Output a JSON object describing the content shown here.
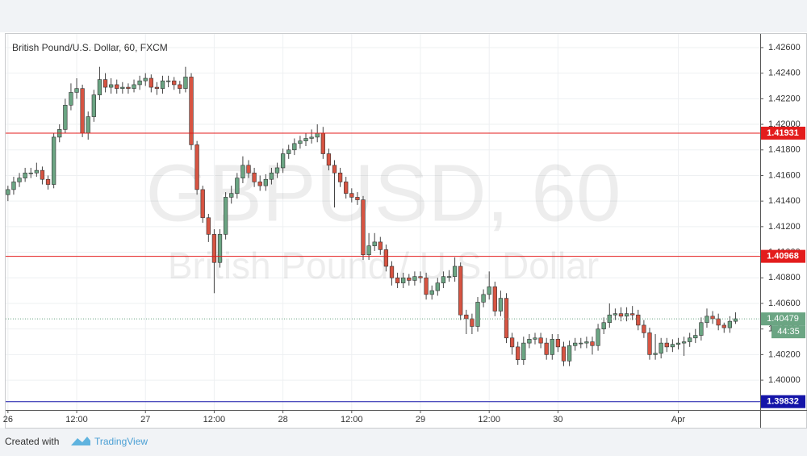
{
  "chart_data": {
    "type": "candlestick",
    "title": "British Pound/U.S. Dollar, 60, FXCM",
    "watermark": "GBPUSD, 60",
    "watermark_subtitle": "British Pound / U.S. Dollar",
    "up_color": "#6ba583",
    "down_color": "#d75442",
    "grid": true,
    "xlim": [
      -0.4,
      131.3
    ],
    "xticks": [
      {
        "value": 0,
        "label": "26"
      },
      {
        "value": 12,
        "label": "12:00"
      },
      {
        "value": 24,
        "label": "27"
      },
      {
        "value": 36,
        "label": "12:00"
      },
      {
        "value": 48,
        "label": "28"
      },
      {
        "value": 60,
        "label": "12:00"
      },
      {
        "value": 72,
        "label": "29"
      },
      {
        "value": 84,
        "label": "12:00"
      },
      {
        "value": 96,
        "label": "30"
      },
      {
        "value": 117,
        "label": "Apr"
      }
    ],
    "ylim": [
      1.39767,
      1.42707
    ],
    "yticks": [
      {
        "value": 1.4,
        "label": "1.40000"
      },
      {
        "value": 1.402,
        "label": "1.40200"
      },
      {
        "value": 1.404,
        "label": "1.40400"
      },
      {
        "value": 1.406,
        "label": "1.40600"
      },
      {
        "value": 1.408,
        "label": "1.40800"
      },
      {
        "value": 1.41,
        "label": "1.41000"
      },
      {
        "value": 1.412,
        "label": "1.41200"
      },
      {
        "value": 1.414,
        "label": "1.41400"
      },
      {
        "value": 1.416,
        "label": "1.41600"
      },
      {
        "value": 1.418,
        "label": "1.41800"
      },
      {
        "value": 1.42,
        "label": "1.42000"
      },
      {
        "value": 1.422,
        "label": "1.42200"
      },
      {
        "value": 1.424,
        "label": "1.42400"
      },
      {
        "value": 1.426,
        "label": "1.42600"
      }
    ],
    "levels": [
      {
        "value": 1.41931,
        "color": "#e31c1c"
      },
      {
        "value": 1.40968,
        "color": "#e31c1c"
      },
      {
        "value": 1.39832,
        "color": "#1414a8"
      }
    ],
    "last_price": 1.40479,
    "countdown": "44:35",
    "candles": [
      [
        1.4145,
        1.4152,
        1.414,
        1.4149
      ],
      [
        1.4149,
        1.4159,
        1.4145,
        1.4155
      ],
      [
        1.4155,
        1.4162,
        1.4151,
        1.4158
      ],
      [
        1.4158,
        1.4166,
        1.4155,
        1.4162
      ],
      [
        1.4162,
        1.4166,
        1.4158,
        1.4162
      ],
      [
        1.4162,
        1.417,
        1.4159,
        1.4164
      ],
      [
        1.4164,
        1.4167,
        1.4153,
        1.4157
      ],
      [
        1.4157,
        1.416,
        1.4149,
        1.4153
      ],
      [
        1.4153,
        1.4193,
        1.415,
        1.419
      ],
      [
        1.419,
        1.42,
        1.4186,
        1.4196
      ],
      [
        1.4196,
        1.422,
        1.4193,
        1.4215
      ],
      [
        1.4215,
        1.4232,
        1.4211,
        1.4225
      ],
      [
        1.4225,
        1.4236,
        1.422,
        1.4228
      ],
      [
        1.4228,
        1.4231,
        1.419,
        1.4193
      ],
      [
        1.4193,
        1.421,
        1.4188,
        1.4206
      ],
      [
        1.4206,
        1.4227,
        1.4202,
        1.4223
      ],
      [
        1.4223,
        1.4245,
        1.4219,
        1.4235
      ],
      [
        1.4235,
        1.424,
        1.4225,
        1.4229
      ],
      [
        1.4229,
        1.4236,
        1.4224,
        1.4231
      ],
      [
        1.4231,
        1.4235,
        1.4224,
        1.4228
      ],
      [
        1.4228,
        1.4233,
        1.4224,
        1.4229
      ],
      [
        1.4229,
        1.4232,
        1.4224,
        1.4228
      ],
      [
        1.4228,
        1.4235,
        1.4225,
        1.4231
      ],
      [
        1.4231,
        1.4238,
        1.4227,
        1.4234
      ],
      [
        1.4234,
        1.424,
        1.423,
        1.4236
      ],
      [
        1.4236,
        1.4239,
        1.4225,
        1.4229
      ],
      [
        1.4229,
        1.4233,
        1.4223,
        1.4228
      ],
      [
        1.4228,
        1.4238,
        1.4224,
        1.4234
      ],
      [
        1.4234,
        1.4238,
        1.4229,
        1.4234
      ],
      [
        1.4234,
        1.4237,
        1.4227,
        1.4231
      ],
      [
        1.4231,
        1.4234,
        1.4224,
        1.4228
      ],
      [
        1.4228,
        1.4245,
        1.4225,
        1.4237
      ],
      [
        1.4237,
        1.424,
        1.418,
        1.4184
      ],
      [
        1.4184,
        1.4187,
        1.4145,
        1.4149
      ],
      [
        1.4149,
        1.4152,
        1.4123,
        1.4127
      ],
      [
        1.4127,
        1.413,
        1.4108,
        1.4114
      ],
      [
        1.4114,
        1.4118,
        1.4068,
        1.4092
      ],
      [
        1.4092,
        1.4118,
        1.4088,
        1.4114
      ],
      [
        1.4114,
        1.4147,
        1.411,
        1.4143
      ],
      [
        1.4143,
        1.4152,
        1.4138,
        1.4146
      ],
      [
        1.4146,
        1.4162,
        1.4142,
        1.4158
      ],
      [
        1.4158,
        1.4175,
        1.4154,
        1.4168
      ],
      [
        1.4168,
        1.4172,
        1.4158,
        1.4162
      ],
      [
        1.4162,
        1.4166,
        1.4151,
        1.4155
      ],
      [
        1.4155,
        1.416,
        1.4148,
        1.4152
      ],
      [
        1.4152,
        1.4161,
        1.4148,
        1.4157
      ],
      [
        1.4157,
        1.4166,
        1.4153,
        1.4162
      ],
      [
        1.4162,
        1.417,
        1.4158,
        1.4166
      ],
      [
        1.4166,
        1.4181,
        1.4162,
        1.4177
      ],
      [
        1.4177,
        1.4184,
        1.4173,
        1.418
      ],
      [
        1.418,
        1.4189,
        1.4176,
        1.4185
      ],
      [
        1.4185,
        1.4191,
        1.4181,
        1.4187
      ],
      [
        1.4187,
        1.4193,
        1.4183,
        1.4189
      ],
      [
        1.4189,
        1.4196,
        1.4185,
        1.419
      ],
      [
        1.419,
        1.42,
        1.4186,
        1.4193
      ],
      [
        1.4193,
        1.4198,
        1.4173,
        1.4177
      ],
      [
        1.4177,
        1.4181,
        1.4164,
        1.4168
      ],
      [
        1.4168,
        1.4172,
        1.4135,
        1.4162
      ],
      [
        1.4162,
        1.4166,
        1.4151,
        1.4155
      ],
      [
        1.4155,
        1.4159,
        1.4142,
        1.4146
      ],
      [
        1.4146,
        1.415,
        1.4139,
        1.4143
      ],
      [
        1.4143,
        1.4147,
        1.4137,
        1.4141
      ],
      [
        1.4141,
        1.4144,
        1.4094,
        1.4098
      ],
      [
        1.4098,
        1.4115,
        1.4094,
        1.4105
      ],
      [
        1.4105,
        1.4115,
        1.4101,
        1.4108
      ],
      [
        1.4108,
        1.4112,
        1.4098,
        1.4102
      ],
      [
        1.4102,
        1.4106,
        1.4085,
        1.4089
      ],
      [
        1.4089,
        1.4093,
        1.4074,
        1.408
      ],
      [
        1.408,
        1.4084,
        1.4072,
        1.4076
      ],
      [
        1.4076,
        1.4084,
        1.4072,
        1.408
      ],
      [
        1.408,
        1.4083,
        1.4074,
        1.4078
      ],
      [
        1.4078,
        1.4085,
        1.4074,
        1.4081
      ],
      [
        1.4081,
        1.4085,
        1.4076,
        1.408
      ],
      [
        1.408,
        1.4084,
        1.4063,
        1.4067
      ],
      [
        1.4067,
        1.4074,
        1.4063,
        1.407
      ],
      [
        1.407,
        1.408,
        1.4066,
        1.4076
      ],
      [
        1.4076,
        1.4085,
        1.4072,
        1.4081
      ],
      [
        1.4081,
        1.4086,
        1.4077,
        1.4081
      ],
      [
        1.4081,
        1.4096,
        1.4077,
        1.4089
      ],
      [
        1.4089,
        1.4092,
        1.4047,
        1.4051
      ],
      [
        1.4051,
        1.4055,
        1.4036,
        1.4048
      ],
      [
        1.4048,
        1.4052,
        1.4036,
        1.4042
      ],
      [
        1.4042,
        1.4065,
        1.4038,
        1.4061
      ],
      [
        1.4061,
        1.4071,
        1.4057,
        1.4067
      ],
      [
        1.4067,
        1.4085,
        1.4063,
        1.4073
      ],
      [
        1.4073,
        1.4077,
        1.405,
        1.4054
      ],
      [
        1.4054,
        1.407,
        1.405,
        1.4064
      ],
      [
        1.4064,
        1.4068,
        1.4029,
        1.4033
      ],
      [
        1.4033,
        1.4037,
        1.402,
        1.4026
      ],
      [
        1.4026,
        1.403,
        1.4012,
        1.4016
      ],
      [
        1.4016,
        1.4034,
        1.4012,
        1.4029
      ],
      [
        1.4029,
        1.4036,
        1.4025,
        1.4032
      ],
      [
        1.4032,
        1.4037,
        1.4028,
        1.4033
      ],
      [
        1.4033,
        1.4037,
        1.4025,
        1.4029
      ],
      [
        1.4029,
        1.4033,
        1.4016,
        1.402
      ],
      [
        1.402,
        1.4036,
        1.4016,
        1.4032
      ],
      [
        1.4032,
        1.4036,
        1.4022,
        1.4026
      ],
      [
        1.4026,
        1.403,
        1.4011,
        1.4015
      ],
      [
        1.4015,
        1.4031,
        1.4011,
        1.4027
      ],
      [
        1.4027,
        1.4033,
        1.4023,
        1.4029
      ],
      [
        1.4029,
        1.4033,
        1.4025,
        1.4029
      ],
      [
        1.4029,
        1.4034,
        1.4025,
        1.403
      ],
      [
        1.403,
        1.4034,
        1.402,
        1.4027
      ],
      [
        1.4027,
        1.4044,
        1.4023,
        1.404
      ],
      [
        1.404,
        1.4049,
        1.4036,
        1.4045
      ],
      [
        1.4045,
        1.406,
        1.4041,
        1.4051
      ],
      [
        1.4051,
        1.4056,
        1.4047,
        1.4052
      ],
      [
        1.4052,
        1.4057,
        1.4046,
        1.405
      ],
      [
        1.405,
        1.4057,
        1.4046,
        1.4052
      ],
      [
        1.4052,
        1.4058,
        1.4047,
        1.4051
      ],
      [
        1.4051,
        1.4055,
        1.4039,
        1.4043
      ],
      [
        1.4043,
        1.4047,
        1.4033,
        1.4037
      ],
      [
        1.4037,
        1.4041,
        1.4016,
        1.402
      ],
      [
        1.402,
        1.4036,
        1.4016,
        1.4021
      ],
      [
        1.4021,
        1.4033,
        1.4017,
        1.4029
      ],
      [
        1.4029,
        1.4033,
        1.4022,
        1.4026
      ],
      [
        1.4026,
        1.4032,
        1.4022,
        1.4028
      ],
      [
        1.4028,
        1.4033,
        1.4024,
        1.4029
      ],
      [
        1.4029,
        1.4034,
        1.4019,
        1.403
      ],
      [
        1.403,
        1.4037,
        1.4026,
        1.4033
      ],
      [
        1.4033,
        1.404,
        1.4029,
        1.4035
      ],
      [
        1.4035,
        1.4049,
        1.4031,
        1.4045
      ],
      [
        1.4045,
        1.4056,
        1.4041,
        1.405
      ],
      [
        1.405,
        1.4054,
        1.4044,
        1.4048
      ],
      [
        1.4048,
        1.4052,
        1.4039,
        1.4043
      ],
      [
        1.4043,
        1.4045,
        1.4037,
        1.4041
      ],
      [
        1.4041,
        1.405,
        1.4037,
        1.4046
      ],
      [
        1.4046,
        1.4053,
        1.4044,
        1.4048
      ]
    ]
  },
  "footer": {
    "created_with": "Created with",
    "brand": "TradingView"
  }
}
